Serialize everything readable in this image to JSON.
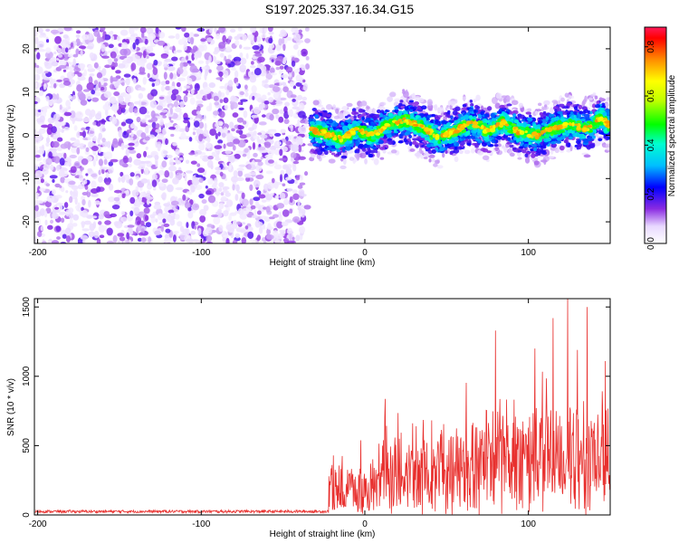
{
  "title": "S197.2025.337.16.34.G15",
  "chart_data": [
    {
      "type": "heatmap",
      "xlabel": "Height of straight line (km)",
      "ylabel": "Frequency (Hz)",
      "xlim": [
        -202,
        150
      ],
      "ylim": [
        -25,
        25
      ],
      "xticks": [
        -200,
        -100,
        0,
        100
      ],
      "yticks": [
        -20,
        -10,
        0,
        10,
        20
      ],
      "noise_region_x": [
        -202,
        -35
      ],
      "signal_region_x": [
        -35,
        150
      ],
      "signal_ridge": {
        "x": [
          -35,
          -25,
          -15,
          -5,
          5,
          15,
          25,
          35,
          45,
          55,
          65,
          75,
          85,
          95,
          105,
          115,
          125,
          135,
          145,
          150
        ],
        "freq": [
          1.5,
          0.5,
          -0.8,
          1.2,
          0.0,
          2.5,
          3.5,
          2.0,
          -0.5,
          1.0,
          3.0,
          1.0,
          3.0,
          0.5,
          0.0,
          1.5,
          2.5,
          1.5,
          4.0,
          2.0
        ]
      },
      "colorbar": {
        "label": "Normalized spectral amplitude",
        "range": [
          0,
          0.88
        ],
        "ticks": [
          "0.0",
          "0.2",
          "0.4",
          "0.6",
          "0.8"
        ]
      }
    },
    {
      "type": "line",
      "xlabel": "Height of straight line (km)",
      "ylabel": "SNR (10 * v/v)",
      "xlim": [
        -202,
        150
      ],
      "ylim": [
        0,
        1560
      ],
      "xticks": [
        -200,
        -100,
        0,
        100
      ],
      "yticks": [
        0,
        500,
        1000,
        1500
      ],
      "series": [
        {
          "name": "SNR",
          "color": "#e8302e",
          "segments": [
            {
              "x_range": [
                -202,
                -22
              ],
              "level": 25,
              "spread": 25
            },
            {
              "x_range": [
                -22,
                10
              ],
              "level": 220,
              "spread": 260
            },
            {
              "x_range": [
                10,
                40
              ],
              "level": 360,
              "spread": 380
            },
            {
              "x_range": [
                40,
                80
              ],
              "level": 430,
              "spread": 450
            },
            {
              "x_range": [
                80,
                150
              ],
              "level": 500,
              "spread": 520
            }
          ],
          "peaks": [
            {
              "x": 80,
              "y": 1330
            },
            {
              "x": 104,
              "y": 1200
            },
            {
              "x": 115,
              "y": 1420
            },
            {
              "x": 124,
              "y": 1560
            },
            {
              "x": 130,
              "y": 1190
            },
            {
              "x": 136,
              "y": 1500
            },
            {
              "x": 147,
              "y": 1110
            }
          ]
        }
      ]
    }
  ]
}
